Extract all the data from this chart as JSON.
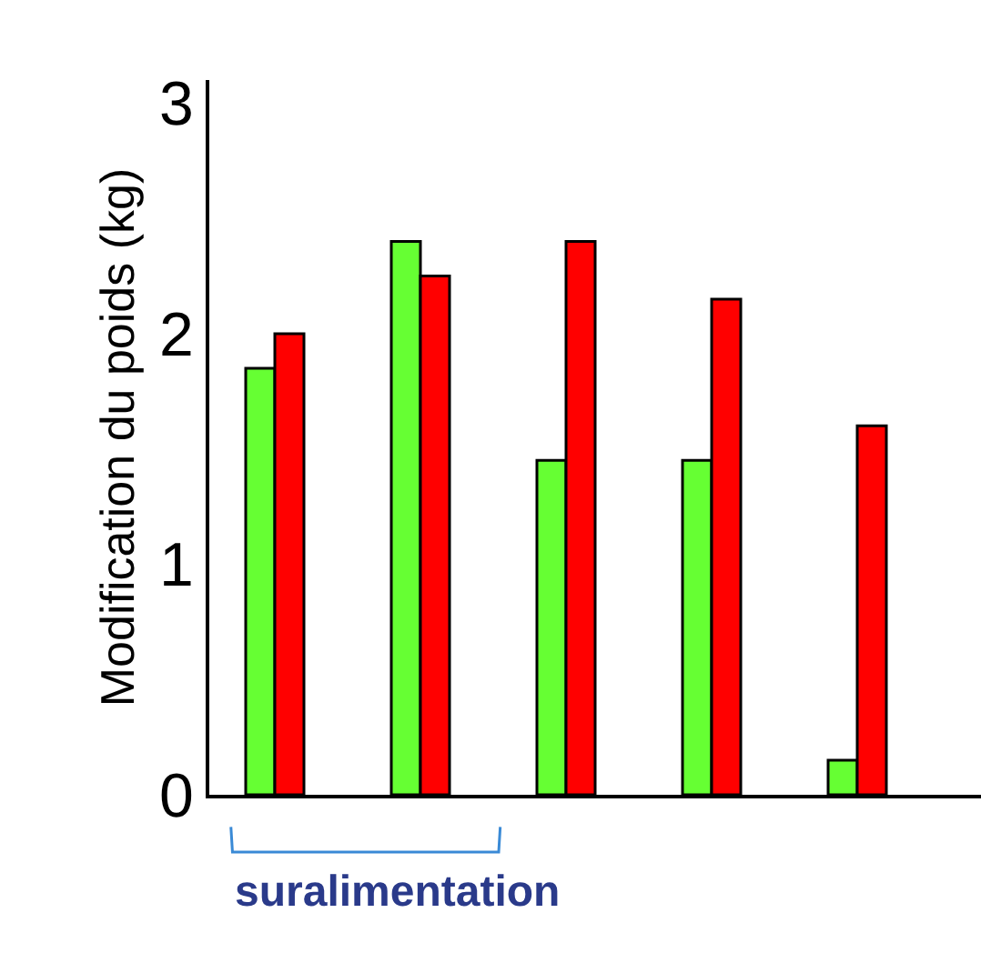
{
  "chart_data": {
    "type": "bar",
    "ylabel": "Modification du poids (kg)",
    "categories": [
      null,
      null,
      null,
      null,
      null
    ],
    "series": [
      {
        "color": "#66ff33",
        "values": [
          1.85,
          2.4,
          1.45,
          1.45,
          0.15
        ]
      },
      {
        "color": "#ff0000",
        "values": [
          2.0,
          2.25,
          2.4,
          2.15,
          1.6
        ]
      }
    ],
    "ylim": [
      0,
      3.1
    ],
    "yticks": [
      0,
      1,
      2,
      3
    ],
    "annotations": [
      "suralimentation"
    ]
  }
}
